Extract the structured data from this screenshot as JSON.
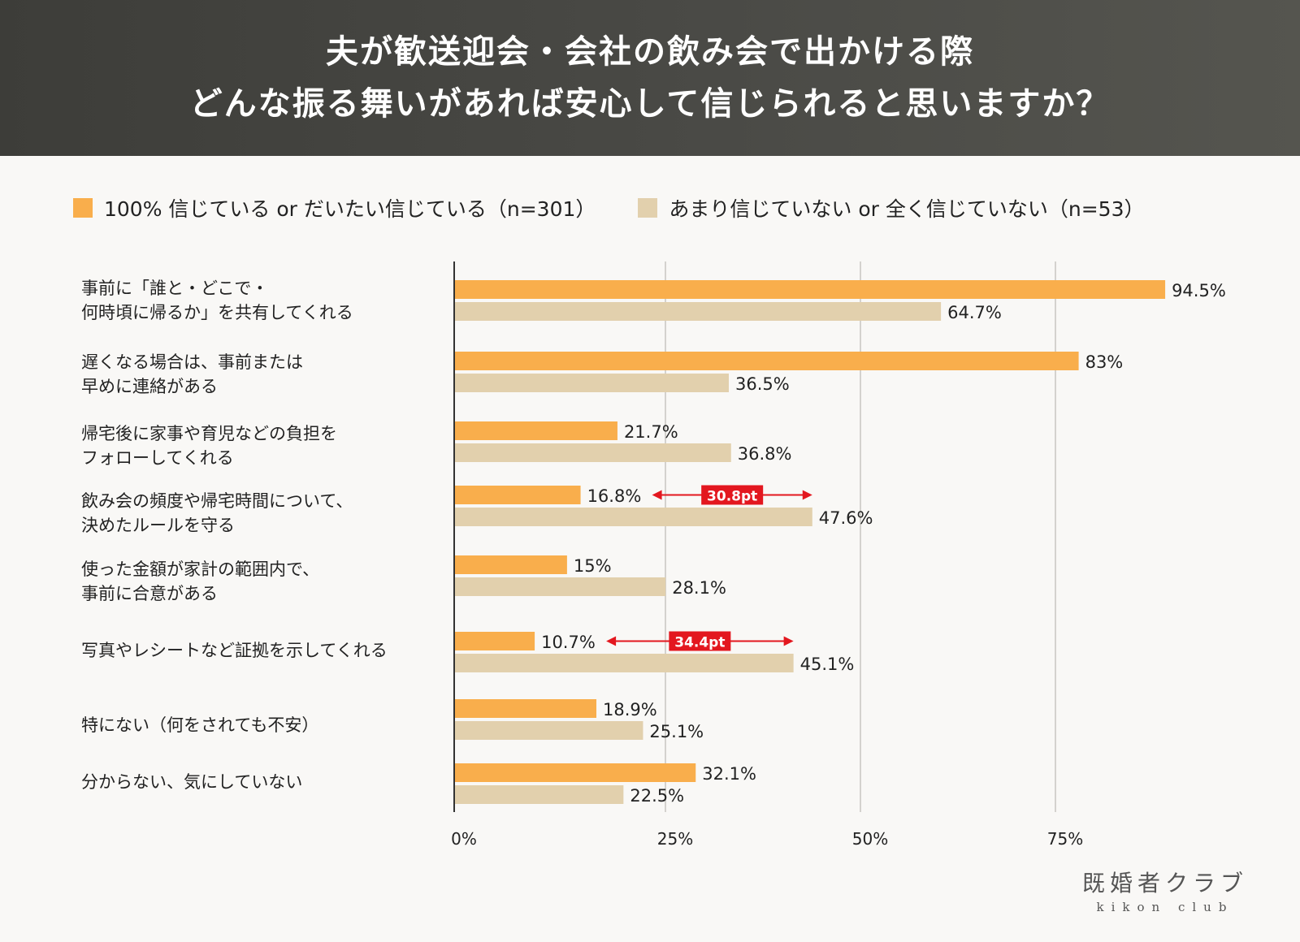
{
  "header": {
    "title_line1": "夫が歓送迎会・会社の飲み会で出かける際",
    "title_line2": "どんな振る舞いがあれば安心して信じられると思いますか？"
  },
  "colors": {
    "series1": "#f9ae4c",
    "series2": "#e2d0ad",
    "annotation": "#e3171f",
    "grid": "#d4d2ce",
    "axis": "#333333"
  },
  "logo": {
    "jp": "既婚者クラブ",
    "en": "kikon club"
  },
  "chart_data": {
    "type": "bar",
    "orientation": "horizontal",
    "title": "夫が歓送迎会・会社の飲み会で出かける際 どんな振る舞いがあれば安心して信じられると思いますか？",
    "xlabel": "",
    "ylabel": "",
    "xlim": [
      0,
      100
    ],
    "x_ticks": [
      "0%",
      "25%",
      "50%",
      "75%"
    ],
    "grid": true,
    "legend_position": "top",
    "categories": [
      "事前に「誰と・どこで・\n何時頃に帰るか」を共有してくれる",
      "遅くなる場合は、事前または\n早めに連絡がある",
      "帰宅後に家事や育児などの負担を\nフォローしてくれる",
      "飲み会の頻度や帰宅時間について、\n決めたルールを守る",
      "使った金額が家計の範囲内で、\n事前に合意がある",
      "写真やレシートなど証拠を示してくれる",
      "特にない（何をされても不安）",
      "分からない、気にしていない"
    ],
    "series": [
      {
        "name": "100% 信じている or だいたい信じている（n=301）",
        "values": [
          94.5,
          83,
          21.7,
          16.8,
          15,
          10.7,
          18.9,
          32.1
        ],
        "labels": [
          "94.5%",
          "83%",
          "21.7%",
          "16.8%",
          "15%",
          "10.7%",
          "18.9%",
          "32.1%"
        ]
      },
      {
        "name": "あまり信じていない or 全く信じていない（n=53）",
        "values": [
          64.7,
          36.5,
          36.8,
          47.6,
          28.1,
          45.1,
          25.1,
          22.5
        ],
        "labels": [
          "64.7%",
          "36.5%",
          "36.8%",
          "47.6%",
          "28.1%",
          "45.1%",
          "25.1%",
          "22.5%"
        ]
      }
    ],
    "annotations": [
      {
        "category_index": 3,
        "text": "30.8pt",
        "from": 16.8,
        "to": 47.6
      },
      {
        "category_index": 5,
        "text": "34.4pt",
        "from": 10.7,
        "to": 45.1
      }
    ]
  }
}
